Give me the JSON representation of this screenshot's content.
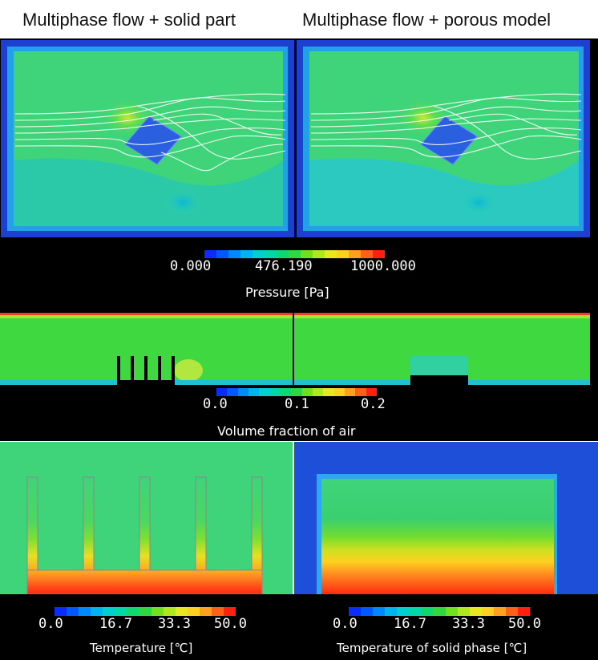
{
  "titles": {
    "left": "Multiphase flow + solid part",
    "right": "Multiphase flow + porous model"
  },
  "pressure_legend": {
    "ticks": [
      "0.000",
      "476.190",
      "1000.000"
    ],
    "label": "Pressure [Pa]"
  },
  "air_legend": {
    "ticks": [
      "0.0",
      "0.1",
      "0.2"
    ],
    "label": "Volume fraction of air"
  },
  "temp_legend_left": {
    "ticks": [
      "0.0",
      "16.7",
      "33.3",
      "50.0"
    ],
    "label": "Temperature [℃]"
  },
  "temp_legend_right": {
    "ticks": [
      "0.0",
      "16.7",
      "33.3",
      "50.0"
    ],
    "label": "Temperature of solid phase [℃]"
  },
  "colors": {
    "colormap": [
      "#0a2cff",
      "#0058ff",
      "#0088ff",
      "#00b4f0",
      "#00d0d0",
      "#00d8a8",
      "#10d870",
      "#30d840",
      "#70e020",
      "#b0e820",
      "#e8e820",
      "#ffd020",
      "#ffa020",
      "#ff6018",
      "#ff2010"
    ],
    "field_green": "#3fd47a",
    "field_blue": "#1e4fd8"
  }
}
